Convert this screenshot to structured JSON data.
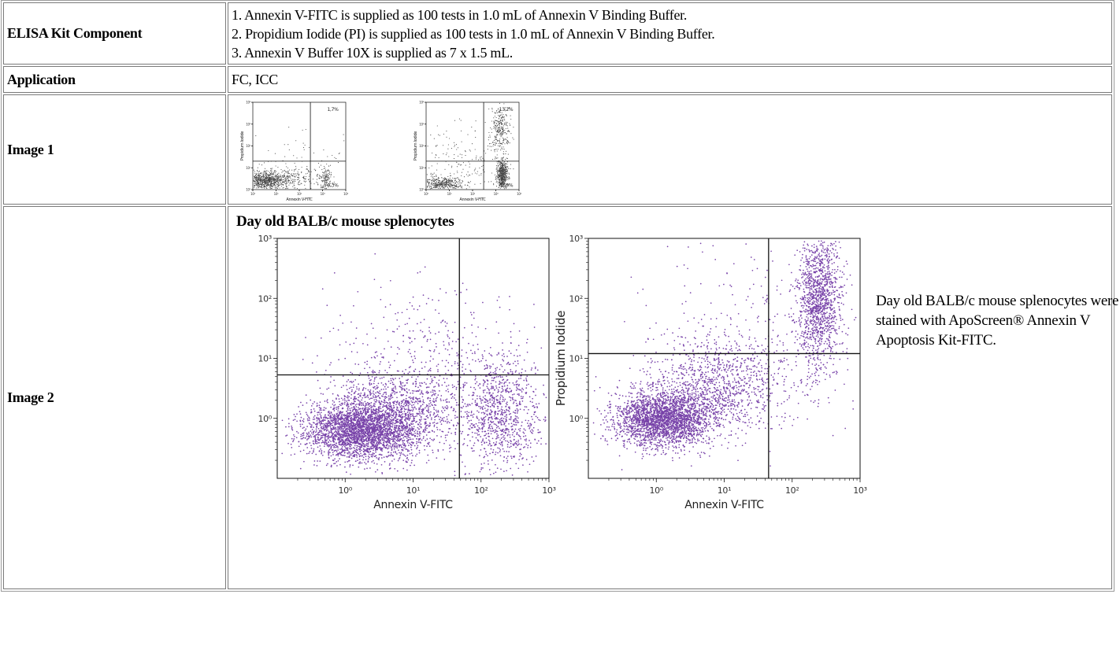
{
  "rows": {
    "component": {
      "label": "ELISA Kit Component",
      "lines": [
        "1. Annexin V-FITC is supplied as 100 tests in 1.0 mL of Annexin V Binding Buffer.",
        "2. Propidium Iodide (PI) is supplied as 100 tests in 1.0 mL of Annexin V Binding Buffer.",
        "3. Annexin V Buffer 10X is supplied as 7 x 1.5 mL."
      ]
    },
    "application": {
      "label": "Application",
      "value": "FC, ICC"
    },
    "image1": {
      "label": "Image 1"
    },
    "image2": {
      "label": "Image 2",
      "title": "Day old BALB/c mouse splenocytes",
      "caption": "Day old BALB/c mouse splenocytes were stained with ApoScreen® Annexin V Apoptosis Kit-FITC."
    }
  },
  "chart_data": [
    {
      "type": "scatter",
      "panel": "image1-left",
      "xlabel": "Annexin V-FITC",
      "ylabel": "Propidium Iodide",
      "x_ticks": [
        "10⁰",
        "10¹",
        "10²",
        "10³",
        "10⁴"
      ],
      "y_ticks": [
        "10⁰",
        "10¹",
        "10²",
        "10³",
        "10⁴"
      ],
      "xlim": [
        1,
        10000
      ],
      "ylim": [
        1,
        10000
      ],
      "scale": "log",
      "quadrant_labels": [
        "1,7%",
        "9,3%"
      ],
      "gate": {
        "x": 300,
        "y": 20
      },
      "color": "#222222"
    },
    {
      "type": "scatter",
      "panel": "image1-right",
      "xlabel": "Annexin V-FITC",
      "ylabel": "Propidium Iodide",
      "x_ticks": [
        "10⁰",
        "10¹",
        "10²",
        "10³",
        "10⁴"
      ],
      "y_ticks": [
        "10⁰",
        "10¹",
        "10²",
        "10³",
        "10⁴"
      ],
      "xlim": [
        1,
        10000
      ],
      "ylim": [
        1,
        10000
      ],
      "scale": "log",
      "quadrant_labels": [
        "13,2%",
        "42,9%"
      ],
      "gate": {
        "x": 300,
        "y": 20
      },
      "color": "#222222"
    },
    {
      "type": "scatter",
      "panel": "image2-left",
      "xlabel": "Annexin V-FITC",
      "ylabel": "",
      "x_ticks": [
        "10⁰",
        "10¹",
        "10²",
        "10³"
      ],
      "y_ticks": [
        "10⁰",
        "10¹",
        "10²",
        "10³"
      ],
      "xlim": [
        0.1,
        1000
      ],
      "ylim": [
        0.1,
        1000
      ],
      "scale": "log",
      "gate": {
        "x": 48,
        "y": 5.3
      },
      "color": "#6a2fa0"
    },
    {
      "type": "scatter",
      "panel": "image2-right",
      "xlabel": "Annexin V-FITC",
      "ylabel": "Propidium Iodide",
      "x_ticks": [
        "10⁰",
        "10¹",
        "10²",
        "10³"
      ],
      "y_ticks": [
        "10⁰",
        "10¹",
        "10²",
        "10³"
      ],
      "xlim": [
        0.1,
        1000
      ],
      "ylim": [
        0.1,
        1000
      ],
      "scale": "log",
      "gate": {
        "x": 45,
        "y": 12
      },
      "color": "#6a2fa0"
    }
  ]
}
